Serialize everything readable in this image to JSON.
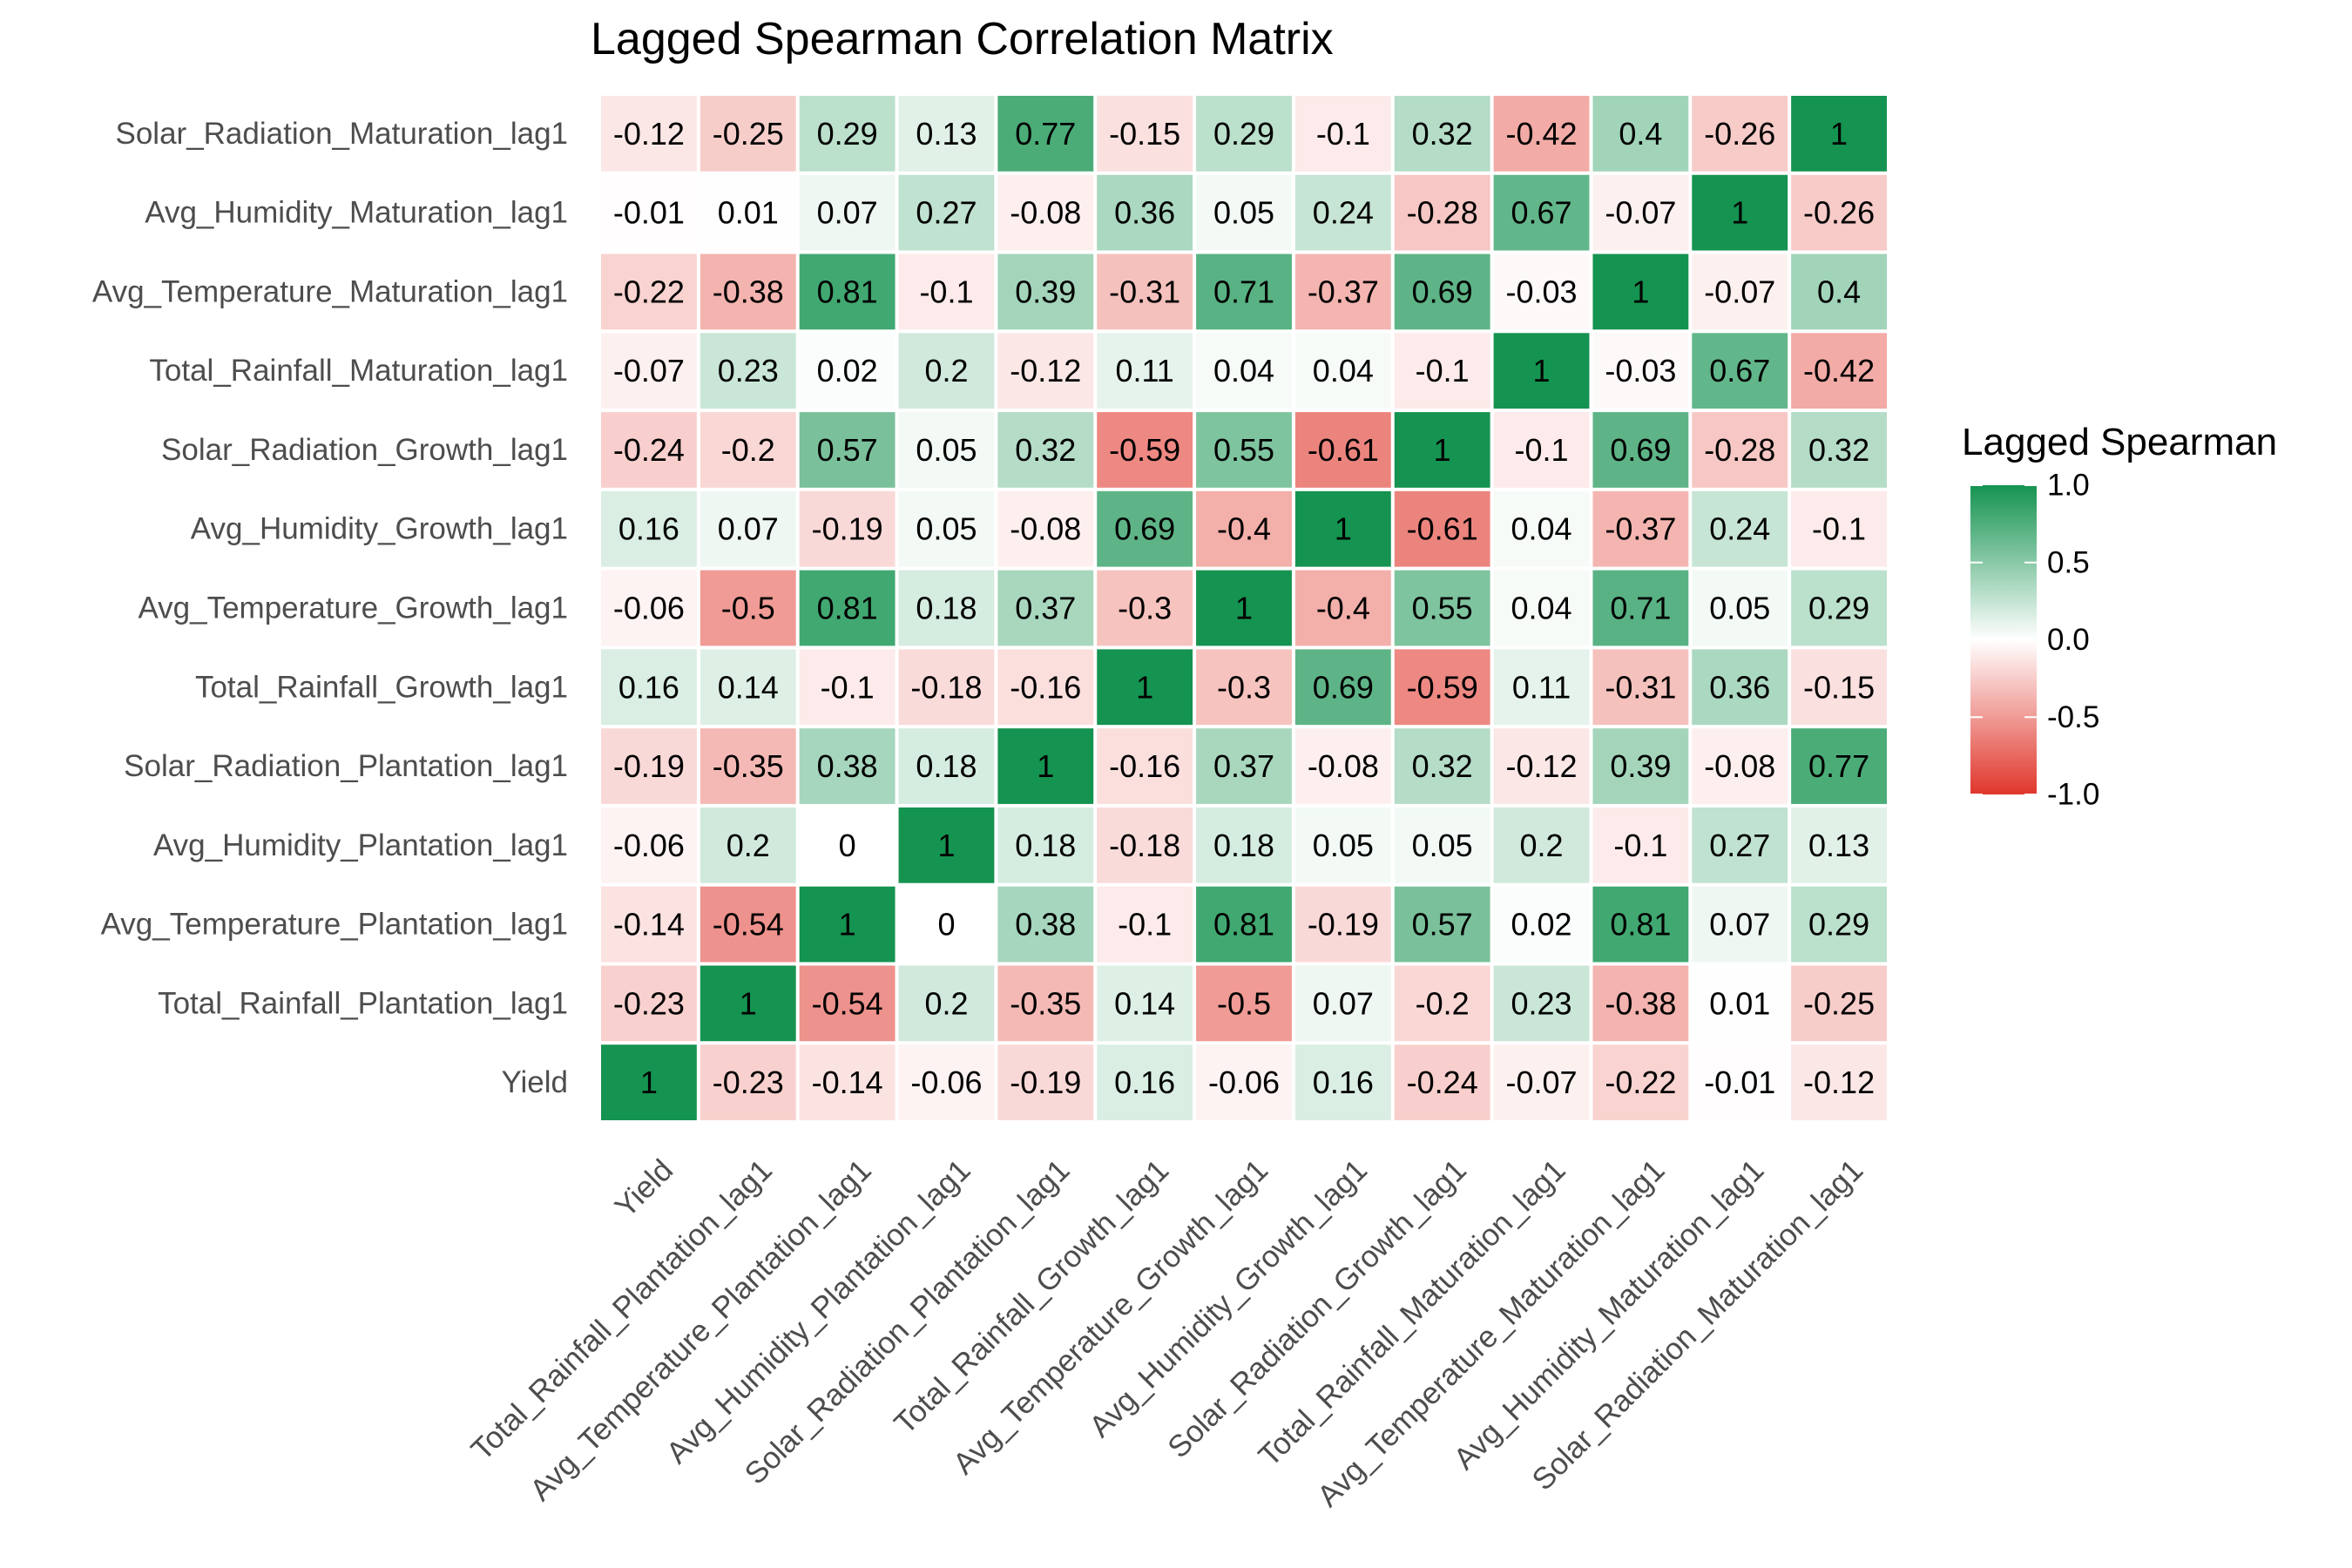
{
  "chart_data": {
    "type": "heatmap",
    "title": "Lagged Spearman Correlation Matrix",
    "xlabel": "",
    "ylabel": "",
    "variables": [
      "Yield",
      "Total_Rainfall_Plantation_lag1",
      "Avg_Temperature_Plantation_lag1",
      "Avg_Humidity_Plantation_lag1",
      "Solar_Radiation_Plantation_lag1",
      "Total_Rainfall_Growth_lag1",
      "Avg_Temperature_Growth_lag1",
      "Avg_Humidity_Growth_lag1",
      "Solar_Radiation_Growth_lag1",
      "Total_Rainfall_Maturation_lag1",
      "Avg_Temperature_Maturation_lag1",
      "Avg_Humidity_Maturation_lag1",
      "Solar_Radiation_Maturation_lag1"
    ],
    "matrix": [
      [
        1,
        -0.23,
        -0.14,
        -0.06,
        -0.19,
        0.16,
        -0.06,
        0.16,
        -0.24,
        -0.07,
        -0.22,
        -0.01,
        -0.12
      ],
      [
        -0.23,
        1,
        -0.54,
        0.2,
        -0.35,
        0.14,
        -0.5,
        0.07,
        -0.2,
        0.23,
        -0.38,
        0.01,
        -0.25
      ],
      [
        -0.14,
        -0.54,
        1,
        0,
        0.38,
        -0.1,
        0.81,
        -0.19,
        0.57,
        0.02,
        0.81,
        0.07,
        0.29
      ],
      [
        -0.06,
        0.2,
        0,
        1,
        0.18,
        -0.18,
        0.18,
        0.05,
        0.05,
        0.2,
        -0.1,
        0.27,
        0.13
      ],
      [
        -0.19,
        -0.35,
        0.38,
        0.18,
        1,
        -0.16,
        0.37,
        -0.08,
        0.32,
        -0.12,
        0.39,
        -0.08,
        0.77
      ],
      [
        0.16,
        0.14,
        -0.1,
        -0.18,
        -0.16,
        1,
        -0.3,
        0.69,
        -0.59,
        0.11,
        -0.31,
        0.36,
        -0.15
      ],
      [
        -0.06,
        -0.5,
        0.81,
        0.18,
        0.37,
        -0.3,
        1,
        -0.4,
        0.55,
        0.04,
        0.71,
        0.05,
        0.29
      ],
      [
        0.16,
        0.07,
        -0.19,
        0.05,
        -0.08,
        0.69,
        -0.4,
        1,
        -0.61,
        0.04,
        -0.37,
        0.24,
        -0.1
      ],
      [
        -0.24,
        -0.2,
        0.57,
        0.05,
        0.32,
        -0.59,
        0.55,
        -0.61,
        1,
        -0.1,
        0.69,
        -0.28,
        0.32
      ],
      [
        -0.07,
        0.23,
        0.02,
        0.2,
        -0.12,
        0.11,
        0.04,
        0.04,
        -0.1,
        1,
        -0.03,
        0.67,
        -0.42
      ],
      [
        -0.22,
        -0.38,
        0.81,
        -0.1,
        0.39,
        -0.31,
        0.71,
        -0.37,
        0.69,
        -0.03,
        1,
        -0.07,
        0.4
      ],
      [
        -0.01,
        0.01,
        0.07,
        0.27,
        -0.08,
        0.36,
        0.05,
        0.24,
        -0.28,
        0.67,
        -0.07,
        1,
        -0.26
      ],
      [
        -0.12,
        -0.25,
        0.29,
        0.13,
        0.77,
        -0.15,
        0.29,
        -0.1,
        0.32,
        -0.42,
        0.4,
        -0.26,
        1
      ]
    ],
    "color_scale": {
      "low": "#e0362b",
      "mid": "#ffffff",
      "high": "#159350",
      "limits": [
        -1,
        1
      ]
    },
    "legend": {
      "title": "Lagged Spearman",
      "ticks": [
        "1.0",
        "0.5",
        "0.0",
        "-0.5",
        "-1.0"
      ],
      "position": "right"
    },
    "grid": false
  }
}
